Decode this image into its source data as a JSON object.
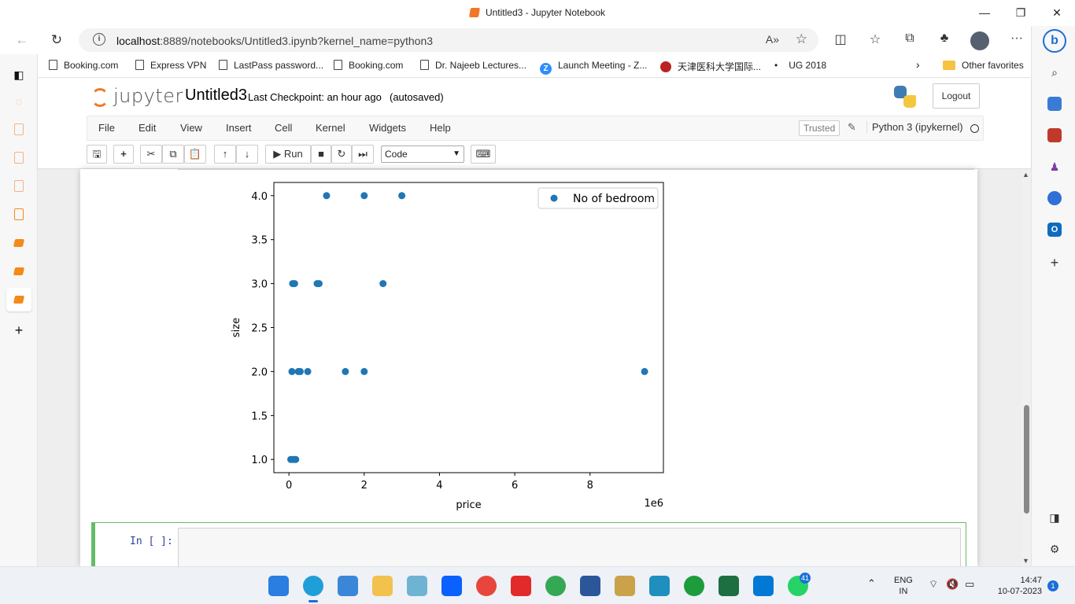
{
  "window": {
    "title": "Untitled3 - Jupyter Notebook",
    "minimize": "—",
    "restore": "❐",
    "close": "✕"
  },
  "address_bar": {
    "url_host": "localhost",
    "url_rest": ":8889/notebooks/Untitled3.ipynb?kernel_name=python3",
    "read_aloud": "A»",
    "favorite": "☆"
  },
  "favorites": [
    {
      "label": "Booking.com",
      "icon": "page-icon"
    },
    {
      "label": "Express VPN",
      "icon": "page-icon"
    },
    {
      "label": "LastPass password...",
      "icon": "page-icon"
    },
    {
      "label": "Booking.com",
      "icon": "page-icon"
    },
    {
      "label": "Dr. Najeeb Lectures...",
      "icon": "page-icon"
    },
    {
      "label": "Launch Meeting - Z...",
      "icon": "zoom-icon"
    },
    {
      "label": "天津医科大学国际...",
      "icon": "university-icon"
    },
    {
      "label": "UG 2018",
      "icon": "dot-icon"
    },
    {
      "label": "Other favorites",
      "icon": "folder-icon"
    }
  ],
  "jupyter": {
    "logo_text": "jupyter",
    "notebook_name": "Untitled3",
    "checkpoint": "Last Checkpoint: an hour ago",
    "autosave": "(autosaved)",
    "logout": "Logout",
    "menu": [
      "File",
      "Edit",
      "View",
      "Insert",
      "Cell",
      "Kernel",
      "Widgets",
      "Help"
    ],
    "trusted": "Trusted",
    "kernel": "Python 3 (ipykernel)",
    "run_label": "Run",
    "cell_type": "Code"
  },
  "cell": {
    "prompt": "In [ ]:"
  },
  "taskbar": {
    "lang": "ENG",
    "region": "IN",
    "time": "14:47",
    "date": "10-07-2023",
    "whatsapp_badge": "41",
    "notif_badge": "1"
  },
  "chart_data": {
    "type": "scatter",
    "xlabel": "price",
    "ylabel": "size",
    "x_offset_label": "1e6",
    "xlim": [
      -400000,
      9950000
    ],
    "ylim": [
      0.85,
      4.15
    ],
    "xticks": [
      0,
      2000000,
      4000000,
      6000000,
      8000000
    ],
    "xtick_labels": [
      "0",
      "2",
      "4",
      "6",
      "8"
    ],
    "yticks": [
      1.0,
      1.5,
      2.0,
      2.5,
      3.0,
      3.5,
      4.0
    ],
    "ytick_labels": [
      "1.0",
      "1.5",
      "2.0",
      "2.5",
      "3.0",
      "3.5",
      "4.0"
    ],
    "legend": "top-right",
    "series": [
      {
        "name": "No of bedroom",
        "color": "#1f77b4",
        "points": [
          [
            1000000,
            4
          ],
          [
            2000000,
            4
          ],
          [
            3000000,
            4
          ],
          [
            100000,
            3
          ],
          [
            150000,
            3
          ],
          [
            750000,
            3
          ],
          [
            800000,
            3
          ],
          [
            2500000,
            3
          ],
          [
            80000,
            2
          ],
          [
            250000,
            2
          ],
          [
            300000,
            2
          ],
          [
            500000,
            2
          ],
          [
            1500000,
            2
          ],
          [
            2000000,
            2
          ],
          [
            9450000,
            2
          ],
          [
            50000,
            1
          ],
          [
            100000,
            1
          ],
          [
            150000,
            1
          ],
          [
            180000,
            1
          ]
        ]
      }
    ]
  }
}
